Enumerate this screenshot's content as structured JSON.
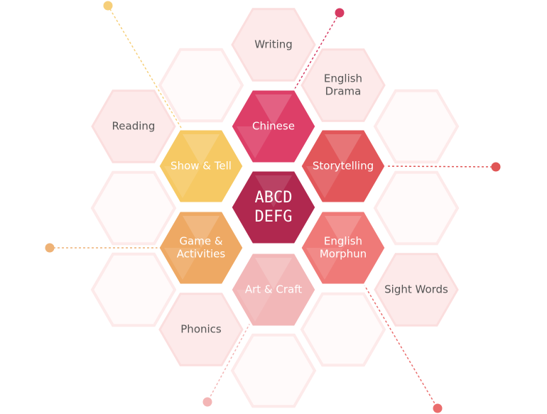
{
  "center": {
    "line1": "ABCD",
    "line2": "DEFG",
    "color": "#b0284f"
  },
  "hexes": [
    {
      "name": "hex-writing",
      "lines": [
        "Writing"
      ],
      "kind": "outer"
    },
    {
      "name": "hex-english-drama",
      "lines": [
        "English",
        "Drama"
      ],
      "kind": "outer"
    },
    {
      "name": "hex-reading",
      "lines": [
        "Reading"
      ],
      "kind": "outer"
    },
    {
      "name": "hex-sight-words",
      "lines": [
        "Sight Words"
      ],
      "kind": "outer"
    },
    {
      "name": "hex-phonics",
      "lines": [
        "Phonics"
      ],
      "kind": "outer"
    },
    {
      "name": "hex-chinese",
      "lines": [
        "Chinese"
      ],
      "kind": "inner",
      "color": "#dd3f68"
    },
    {
      "name": "hex-show-tell",
      "lines": [
        "Show & Tell"
      ],
      "kind": "inner",
      "color": "#f6c964"
    },
    {
      "name": "hex-storytelling",
      "lines": [
        "Storytelling"
      ],
      "kind": "inner",
      "color": "#e2575a"
    },
    {
      "name": "hex-game-activities",
      "lines": [
        "Game &",
        "Activities"
      ],
      "kind": "inner",
      "color": "#eea964"
    },
    {
      "name": "hex-english-morphun",
      "lines": [
        "English",
        "Morphun"
      ],
      "kind": "inner",
      "color": "#ef7a78"
    },
    {
      "name": "hex-art-craft",
      "lines": [
        "Art & Craft"
      ],
      "kind": "inner",
      "color": "#f2b7b8"
    }
  ],
  "connector_colors": {
    "chinese": "#d63a62",
    "show_tell": "#f6cf7a",
    "storytelling": "#e05555",
    "game_activities": "#eeb276",
    "english_morphun": "#ea6d6d",
    "art_craft": "#f3b5b5"
  },
  "outer_text_color": "#555555",
  "outer_fill_color": "#fdeaea"
}
